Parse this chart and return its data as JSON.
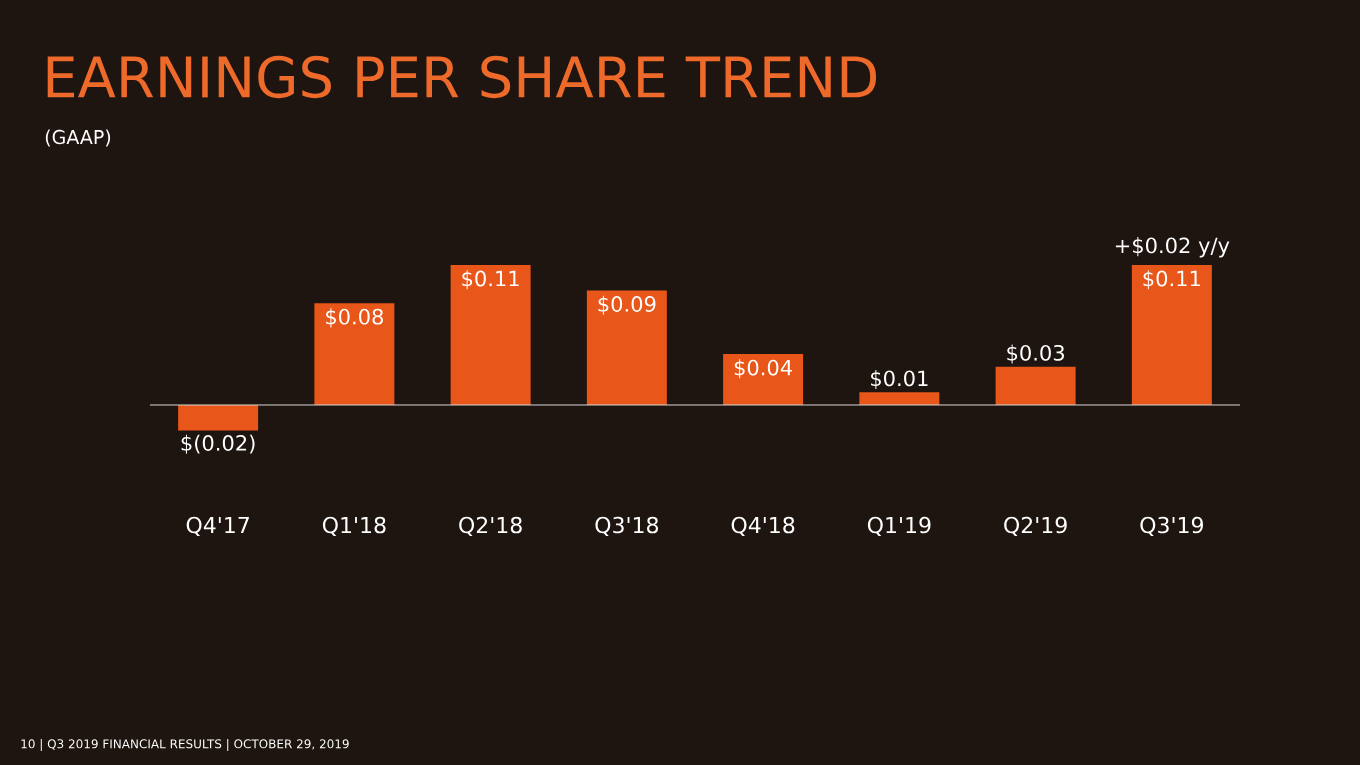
{
  "chart_data": {
    "type": "bar",
    "title": "EARNINGS PER SHARE TREND",
    "subtitle": "(GAAP)",
    "categories": [
      "Q4'17",
      "Q1'18",
      "Q2'18",
      "Q3'18",
      "Q4'18",
      "Q1'19",
      "Q2'19",
      "Q3'19"
    ],
    "values": [
      -0.02,
      0.08,
      0.11,
      0.09,
      0.04,
      0.01,
      0.03,
      0.11
    ],
    "value_labels": [
      "$(0.02)",
      "$0.08",
      "$0.11",
      "$0.09",
      "$0.04",
      "$0.01",
      "$0.03",
      "$0.11"
    ],
    "color": "#e8561a",
    "annotations": [
      {
        "text": "+$0.02 y/y",
        "x": "Q3'19",
        "y": 0.11
      },
      "10 | Q3 2019 FINANCIAL RESULTS | OCTOBER 29, 2019"
    ]
  }
}
